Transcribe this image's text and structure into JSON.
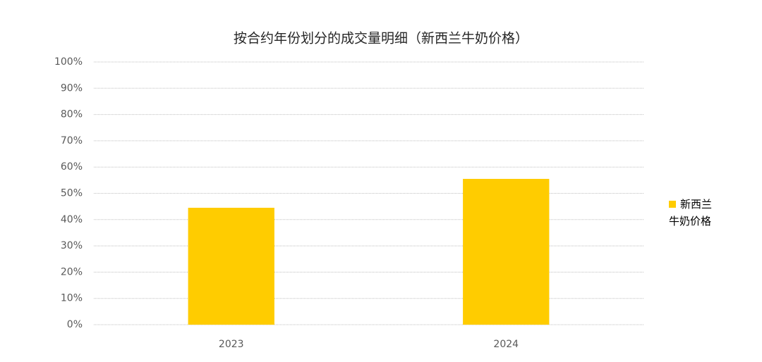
{
  "chart_data": {
    "type": "bar",
    "title": "按合约年份划分的成交量明细（新西兰牛奶价格）",
    "categories": [
      "2023",
      "2024"
    ],
    "series": [
      {
        "name": "新西兰牛奶价格",
        "color": "#ffcc00",
        "values": [
          44.5,
          55.5
        ]
      }
    ],
    "ylim": [
      0,
      100
    ],
    "yticks": [
      {
        "value": 0,
        "label": "0%"
      },
      {
        "value": 10,
        "label": "10%"
      },
      {
        "value": 20,
        "label": "20%"
      },
      {
        "value": 30,
        "label": "30%"
      },
      {
        "value": 40,
        "label": "40%"
      },
      {
        "value": 50,
        "label": "50%"
      },
      {
        "value": 60,
        "label": "60%"
      },
      {
        "value": 70,
        "label": "70%"
      },
      {
        "value": 80,
        "label": "80%"
      },
      {
        "value": 90,
        "label": "90%"
      },
      {
        "value": 100,
        "label": "100%"
      }
    ],
    "grid": true,
    "legend": "right"
  }
}
